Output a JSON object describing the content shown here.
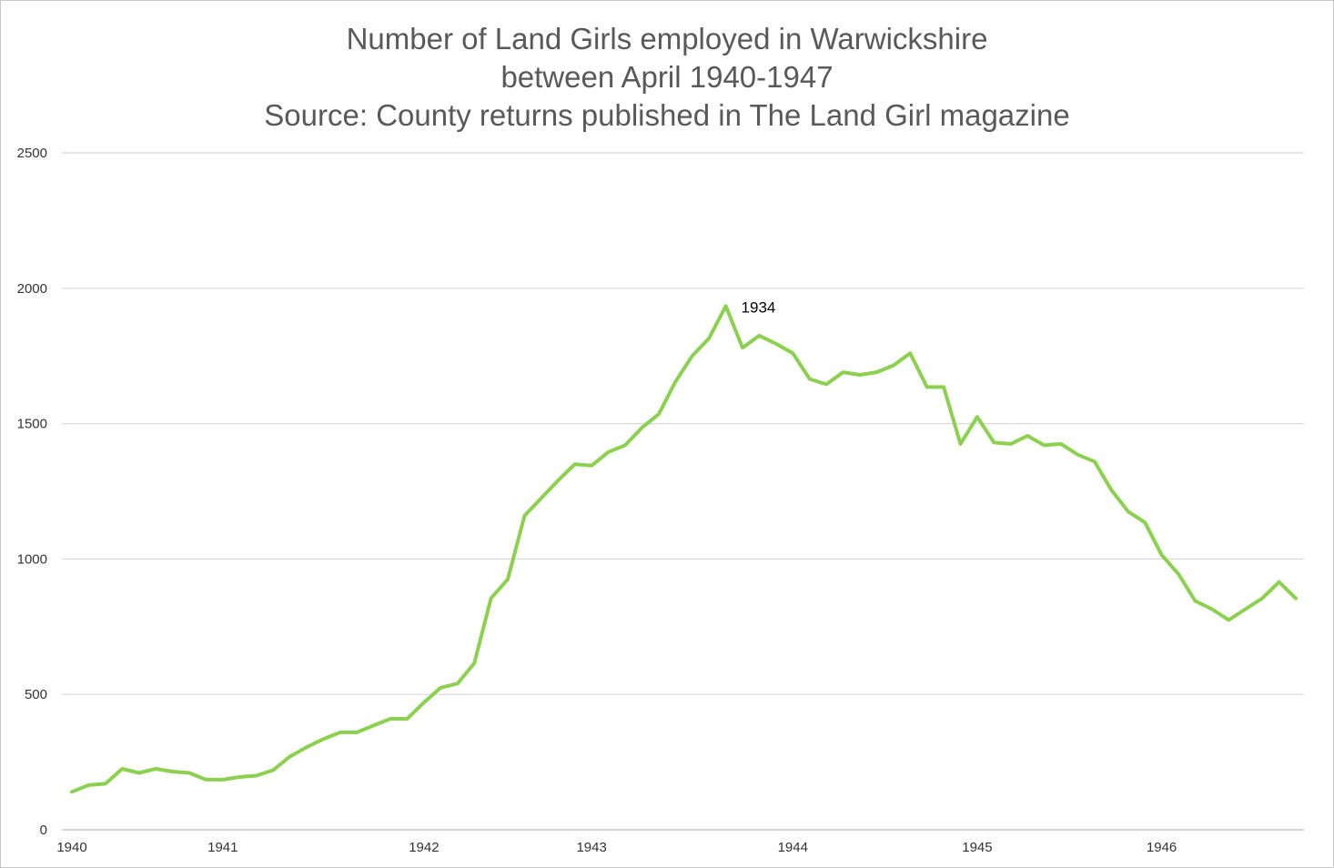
{
  "chart_data": {
    "type": "line",
    "title": [
      "Number of Land Girls employed in Warwickshire",
      "between April 1940-1947",
      "Source: County returns published in The Land Girl magazine"
    ],
    "xlabel": "",
    "ylabel": "",
    "ylim": [
      0,
      2500
    ],
    "yticks": [
      0,
      500,
      1000,
      1500,
      2000,
      2500
    ],
    "xtick_labels": [
      {
        "label": "1940",
        "index": 0
      },
      {
        "label": "1941",
        "index": 9
      },
      {
        "label": "1942",
        "index": 21
      },
      {
        "label": "1943",
        "index": 31
      },
      {
        "label": "1944",
        "index": 43
      },
      {
        "label": "1945",
        "index": 54
      },
      {
        "label": "1946",
        "index": 65
      }
    ],
    "grid": true,
    "color": "#8bd14f",
    "series": [
      {
        "values": [
          140,
          165,
          170,
          225,
          210,
          225,
          215,
          210,
          185,
          185,
          195,
          200,
          220,
          270,
          305,
          335,
          360,
          360,
          385,
          410,
          410,
          470,
          525,
          540,
          615,
          855,
          925,
          1160,
          1225,
          1290,
          1350,
          1345,
          1395,
          1420,
          1485,
          1535,
          1655,
          1750,
          1815,
          1934,
          1780,
          1825,
          1795,
          1760,
          1665,
          1645,
          1690,
          1680,
          1690,
          1715,
          1760,
          1635,
          1635,
          1425,
          1525,
          1430,
          1425,
          1455,
          1420,
          1425,
          1385,
          1360,
          1255,
          1175,
          1135,
          1015,
          945,
          845,
          815,
          775,
          815,
          855,
          915,
          855
        ]
      }
    ],
    "annotations": [
      {
        "text": "1934",
        "index": 39
      }
    ]
  }
}
